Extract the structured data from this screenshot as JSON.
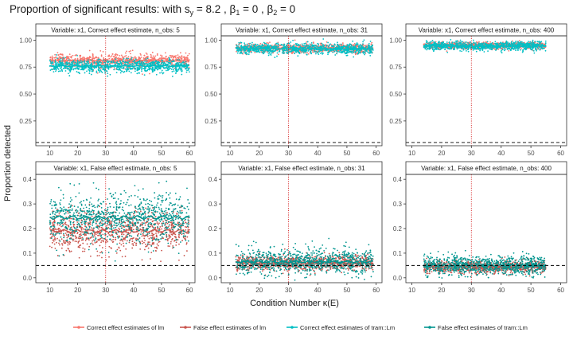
{
  "chart_data": {
    "type": "scatter",
    "title": {
      "prefix": "Proportion of significant results:  with ",
      "s_y": "8.2",
      "beta1": "0",
      "beta2": "0"
    },
    "xlabel": "Condition Number κ(E)",
    "ylabel": "Proportion detected",
    "grid": false,
    "legend_position": "bottom",
    "series": [
      {
        "name": "Correct effect estimates of lm",
        "color": "#F8766D"
      },
      {
        "name": "False effect estimates of lm",
        "color": "#C9554D"
      },
      {
        "name": "Correct effect estimates of tram::Lm",
        "color": "#00BFC4"
      },
      {
        "name": "False effect estimates of tram::Lm",
        "color": "#00958F"
      }
    ],
    "reference_lines": {
      "horizontal_dashed_y": 0.05,
      "vertical_dotted_x": 30
    },
    "panels": [
      {
        "strip": "Variable: x1, Correct effect estimate, n_obs: 5",
        "xlim": [
          5,
          62
        ],
        "xticks": [
          10,
          20,
          30,
          40,
          50,
          60
        ],
        "ylim": [
          0.02,
          1.04
        ],
        "yticks": [
          0.25,
          0.5,
          0.75,
          1.0
        ],
        "ytick_labels": [
          "0.25",
          "0.50",
          "0.75",
          "1.00"
        ],
        "x_range": [
          10,
          60
        ],
        "points": [
          {
            "series": 0,
            "mean": 0.81,
            "spread": 0.03
          },
          {
            "series": 2,
            "mean": 0.76,
            "spread": 0.03
          }
        ]
      },
      {
        "strip": "Variable: x1, Correct effect estimate, n_obs: 31",
        "xlim": [
          7,
          62
        ],
        "xticks": [
          10,
          20,
          30,
          40,
          50,
          60
        ],
        "ylim": [
          0.02,
          1.04
        ],
        "yticks": [
          0.25,
          0.5,
          0.75,
          1.0
        ],
        "ytick_labels": [
          "0.25",
          "0.50",
          "0.75",
          "1.00"
        ],
        "x_range": [
          12,
          59
        ],
        "points": [
          {
            "series": 0,
            "mean": 0.925,
            "spread": 0.02
          },
          {
            "series": 2,
            "mean": 0.92,
            "spread": 0.025
          }
        ]
      },
      {
        "strip": "Variable: x1, Correct effect estimate, n_obs: 400",
        "xlim": [
          8,
          62
        ],
        "xticks": [
          10,
          20,
          30,
          40,
          50,
          60
        ],
        "ylim": [
          0.02,
          1.04
        ],
        "yticks": [
          0.25,
          0.5,
          0.75,
          1.0
        ],
        "ytick_labels": [
          "0.25",
          "0.50",
          "0.75",
          "1.00"
        ],
        "x_range": [
          14,
          55
        ],
        "points": [
          {
            "series": 0,
            "mean": 0.95,
            "spread": 0.015
          },
          {
            "series": 2,
            "mean": 0.945,
            "spread": 0.02
          }
        ]
      },
      {
        "strip": "Variable: x1, False effect estimate, n_obs: 5",
        "xlim": [
          5,
          62
        ],
        "xticks": [
          10,
          20,
          30,
          40,
          50,
          60
        ],
        "ylim": [
          -0.02,
          0.42
        ],
        "yticks": [
          0.0,
          0.1,
          0.2,
          0.3,
          0.4
        ],
        "ytick_labels": [
          "0.0",
          "0.1",
          "0.2",
          "0.3",
          "0.4"
        ],
        "x_range": [
          10,
          60
        ],
        "points": [
          {
            "series": 1,
            "mean": 0.19,
            "spread": 0.04
          },
          {
            "series": 3,
            "mean": 0.245,
            "spread": 0.05
          }
        ]
      },
      {
        "strip": "Variable: x1, False effect estimate, n_obs: 31",
        "xlim": [
          7,
          62
        ],
        "xticks": [
          10,
          20,
          30,
          40,
          50,
          60
        ],
        "ylim": [
          -0.02,
          0.42
        ],
        "yticks": [
          0.0,
          0.1,
          0.2,
          0.3,
          0.4
        ],
        "ytick_labels": [
          "0.0",
          "0.1",
          "0.2",
          "0.3",
          "0.4"
        ],
        "x_range": [
          12,
          59
        ],
        "points": [
          {
            "series": 1,
            "mean": 0.06,
            "spread": 0.015
          },
          {
            "series": 3,
            "mean": 0.065,
            "spread": 0.025
          }
        ]
      },
      {
        "strip": "Variable: x1, False effect estimate, n_obs: 400",
        "xlim": [
          8,
          62
        ],
        "xticks": [
          10,
          20,
          30,
          40,
          50,
          60
        ],
        "ylim": [
          -0.02,
          0.42
        ],
        "yticks": [
          0.0,
          0.1,
          0.2,
          0.3,
          0.4
        ],
        "ytick_labels": [
          "0.0",
          "0.1",
          "0.2",
          "0.3",
          "0.4"
        ],
        "x_range": [
          14,
          55
        ],
        "points": [
          {
            "series": 1,
            "mean": 0.045,
            "spread": 0.012
          },
          {
            "series": 3,
            "mean": 0.05,
            "spread": 0.02
          }
        ]
      }
    ]
  }
}
